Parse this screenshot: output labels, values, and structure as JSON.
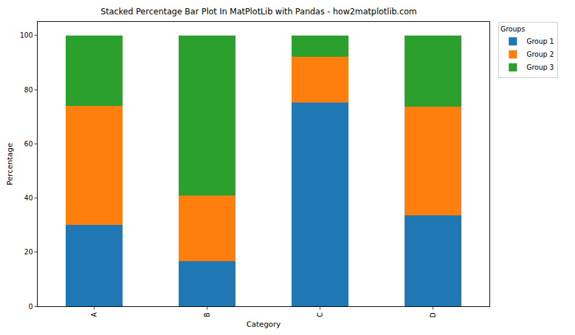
{
  "chart_data": {
    "type": "bar",
    "stacked": true,
    "title": "Stacked Percentage Bar Plot In MatPlotLib with Pandas - how2matplotlib.com",
    "x_label": "Category",
    "y_label": "Percentage",
    "categories": [
      "A",
      "B",
      "C",
      "D"
    ],
    "series": [
      {
        "name": "Group 1",
        "color": "#1f77b4",
        "values": [
          30,
          16.7,
          75.3,
          33.6
        ]
      },
      {
        "name": "Group 2",
        "color": "#ff7f0e",
        "values": [
          44,
          24.3,
          16.9,
          40
        ]
      },
      {
        "name": "Group 3",
        "color": "#2ca02c",
        "values": [
          26,
          59,
          7.8,
          26.4
        ]
      }
    ],
    "ylim": [
      0,
      105
    ],
    "yticks": [
      0,
      20,
      40,
      60,
      80,
      100
    ],
    "grid": false,
    "legend": "outside upper right",
    "legend_title": "Groups"
  }
}
